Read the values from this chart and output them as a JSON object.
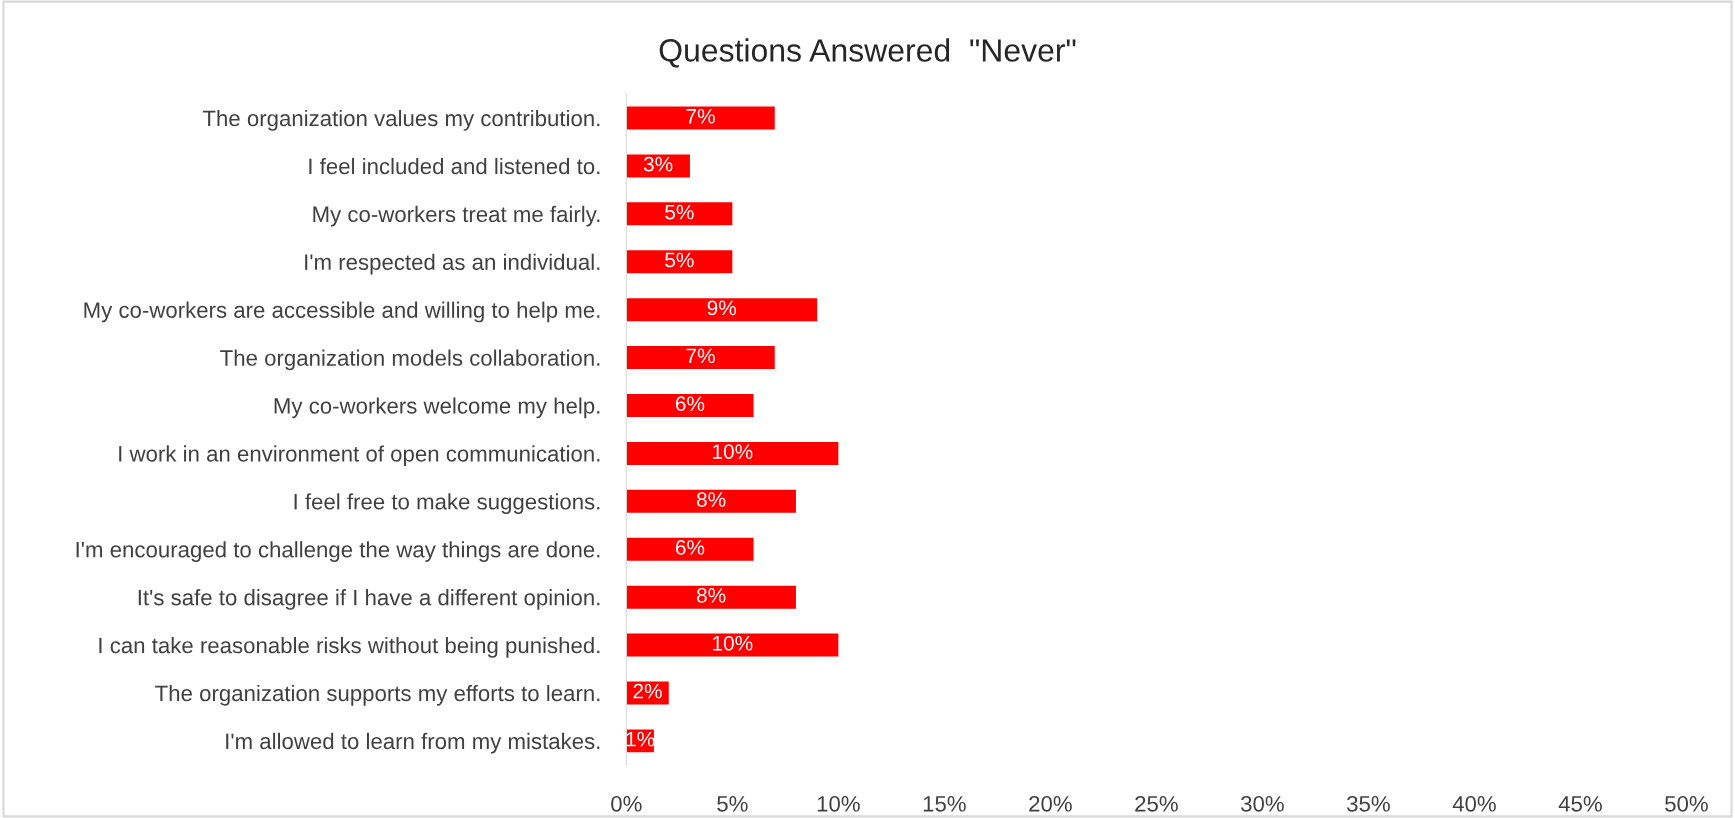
{
  "chart_data": {
    "type": "bar",
    "orientation": "horizontal",
    "title": "Questions Answered  \"Never\"",
    "categories": [
      "The organization values my contribution.",
      "I feel included and listened to.",
      "My co-workers treat me fairly.",
      "I'm respected as an individual.",
      "My co-workers are accessible and willing to help me.",
      "The organization models collaboration.",
      "My co-workers welcome my help.",
      "I work in an environment of open communication.",
      "I feel free to make suggestions.",
      "I'm encouraged to challenge the way things are done.",
      "It's safe to disagree if I have a different opinion.",
      "I can take reasonable risks without being punished.",
      "The organization supports my efforts to learn.",
      "I'm allowed to learn from my mistakes."
    ],
    "values": [
      7,
      3,
      5,
      5,
      9,
      7,
      6,
      10,
      8,
      6,
      8,
      10,
      2,
      1.3
    ],
    "value_labels": [
      "7%",
      "3%",
      "5%",
      "5%",
      "9%",
      "7%",
      "6%",
      "10%",
      "8%",
      "6%",
      "8%",
      "10%",
      "2%",
      "1%"
    ],
    "color": "#ff0000",
    "xlim": [
      0,
      50
    ],
    "xticks": [
      {
        "value": 0,
        "label": "0%"
      },
      {
        "value": 5,
        "label": "5%"
      },
      {
        "value": 10,
        "label": "10%"
      },
      {
        "value": 15,
        "label": "15%"
      },
      {
        "value": 20,
        "label": "20%"
      },
      {
        "value": 25,
        "label": "25%"
      },
      {
        "value": 30,
        "label": "30%"
      },
      {
        "value": 35,
        "label": "35%"
      },
      {
        "value": 40,
        "label": "40%"
      },
      {
        "value": 45,
        "label": "45%"
      },
      {
        "value": 50,
        "label": "50%"
      }
    ],
    "grid": false,
    "legend": false
  }
}
